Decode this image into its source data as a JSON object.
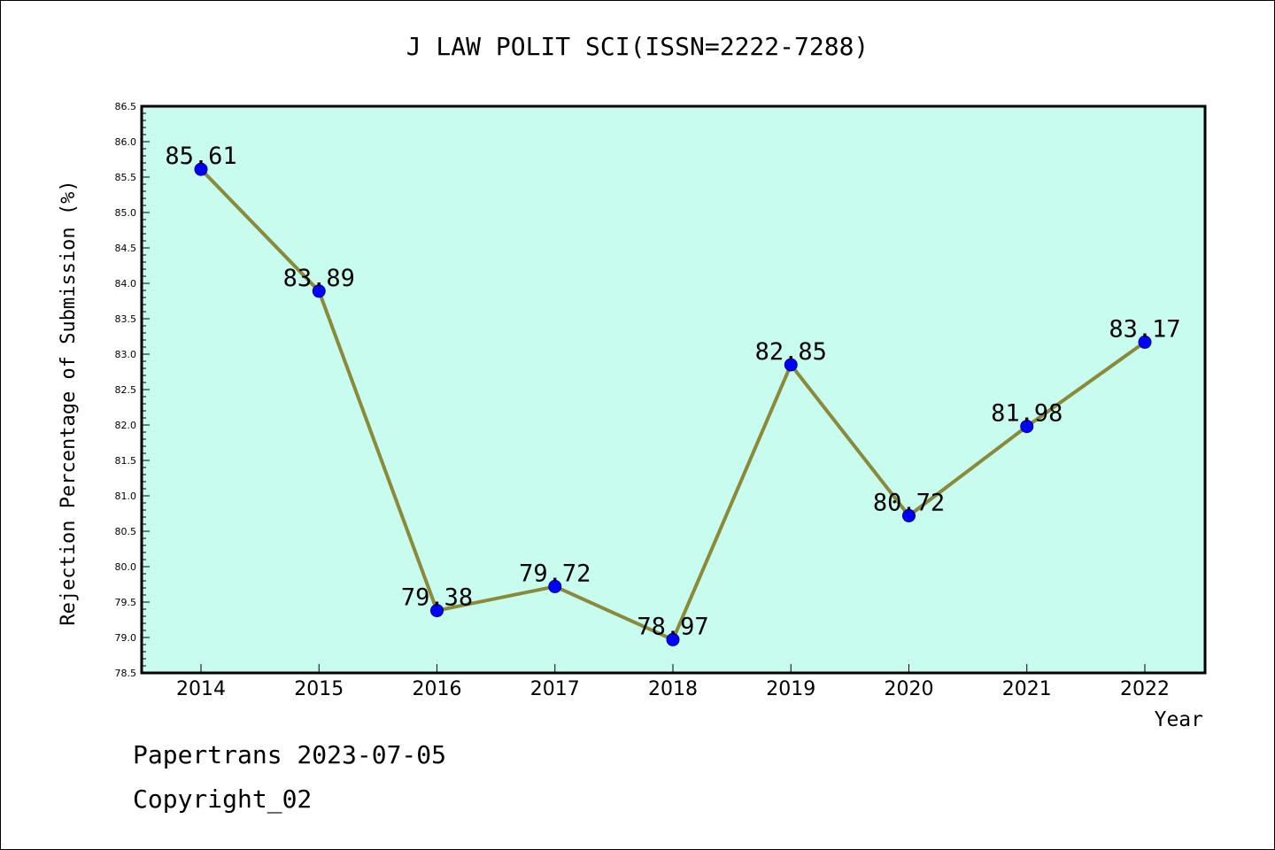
{
  "chart_data": {
    "type": "line",
    "title": "J LAW POLIT SCI(ISSN=2222-7288)",
    "xlabel": "Year",
    "ylabel": "Rejection Percentage of Submission (%)",
    "categories": [
      "2014",
      "2015",
      "2016",
      "2017",
      "2018",
      "2019",
      "2020",
      "2021",
      "2022"
    ],
    "series": [
      {
        "values": [
          85.61,
          83.89,
          79.38,
          79.72,
          78.97,
          82.85,
          80.72,
          81.98,
          83.17
        ],
        "labels": [
          "85.61",
          "83.89",
          "79.38",
          "79.72",
          "78.97",
          "82.85",
          "80.72",
          "81.98",
          "83.17"
        ]
      }
    ],
    "ylim": [
      78.5,
      86.5
    ],
    "yticks": [
      "78.5",
      "79.0",
      "79.5",
      "80.0",
      "80.5",
      "81.0",
      "81.5",
      "82.0",
      "82.5",
      "83.0",
      "83.5",
      "84.0",
      "84.5",
      "85.0",
      "85.5",
      "86.0",
      "86.5"
    ],
    "grid": false,
    "colors": {
      "plot_background": "#c8fcee",
      "line": "#8b8a3a",
      "marker": "#0000ff",
      "axis": "#000000"
    }
  },
  "footer": {
    "line1": "Papertrans 2023-07-05",
    "line2": "Copyright_02"
  }
}
